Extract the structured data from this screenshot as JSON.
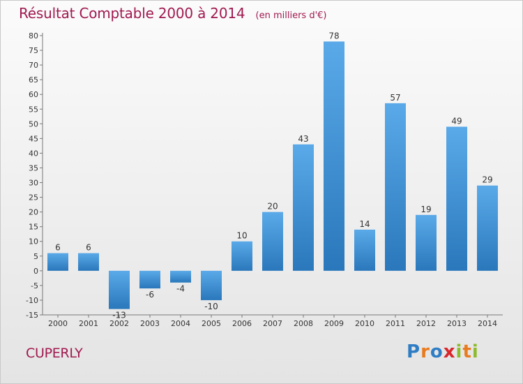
{
  "chart_data": {
    "type": "bar",
    "title": "Résultat Comptable 2000 à 2014",
    "subtitle": "(en milliers d'€)",
    "xlabel": "",
    "ylabel": "",
    "categories": [
      "2000",
      "2001",
      "2002",
      "2003",
      "2004",
      "2005",
      "2006",
      "2007",
      "2008",
      "2009",
      "2010",
      "2011",
      "2012",
      "2013",
      "2014"
    ],
    "values": [
      6,
      6,
      -13,
      -6,
      -4,
      -10,
      10,
      20,
      43,
      78,
      14,
      57,
      19,
      49,
      29
    ],
    "data_labels": [
      "6",
      "6",
      "-13",
      "-6",
      "-4",
      "-10",
      "10",
      "20",
      "43",
      "78",
      "14",
      "57",
      "19",
      "49",
      "29"
    ],
    "ylim": [
      -15,
      80
    ],
    "yticks": [
      80,
      75,
      70,
      65,
      60,
      55,
      50,
      45,
      40,
      35,
      30,
      25,
      20,
      15,
      10,
      5,
      0,
      -5,
      -10,
      -15
    ],
    "ytick_labels": [
      "80",
      "75",
      "70",
      "65",
      "60",
      "55",
      "50",
      "45",
      "40",
      "35",
      "30",
      "25",
      "20",
      "15",
      "10",
      "5",
      "0",
      "-5",
      "-10",
      "-15"
    ],
    "grid": false,
    "bar_color": "#3d8fd1"
  },
  "commune": "CUPERLY",
  "logo": {
    "letters": [
      "P",
      "r",
      "o",
      "x",
      "i",
      "t",
      "i"
    ],
    "colors": [
      "#2f7dc4",
      "#e87b1e",
      "#2f7dc4",
      "#d9262d",
      "#8dbb2c",
      "#e87b1e",
      "#8dbb2c"
    ]
  },
  "colors": {
    "title": "#a0194f",
    "axis": "#777777"
  }
}
